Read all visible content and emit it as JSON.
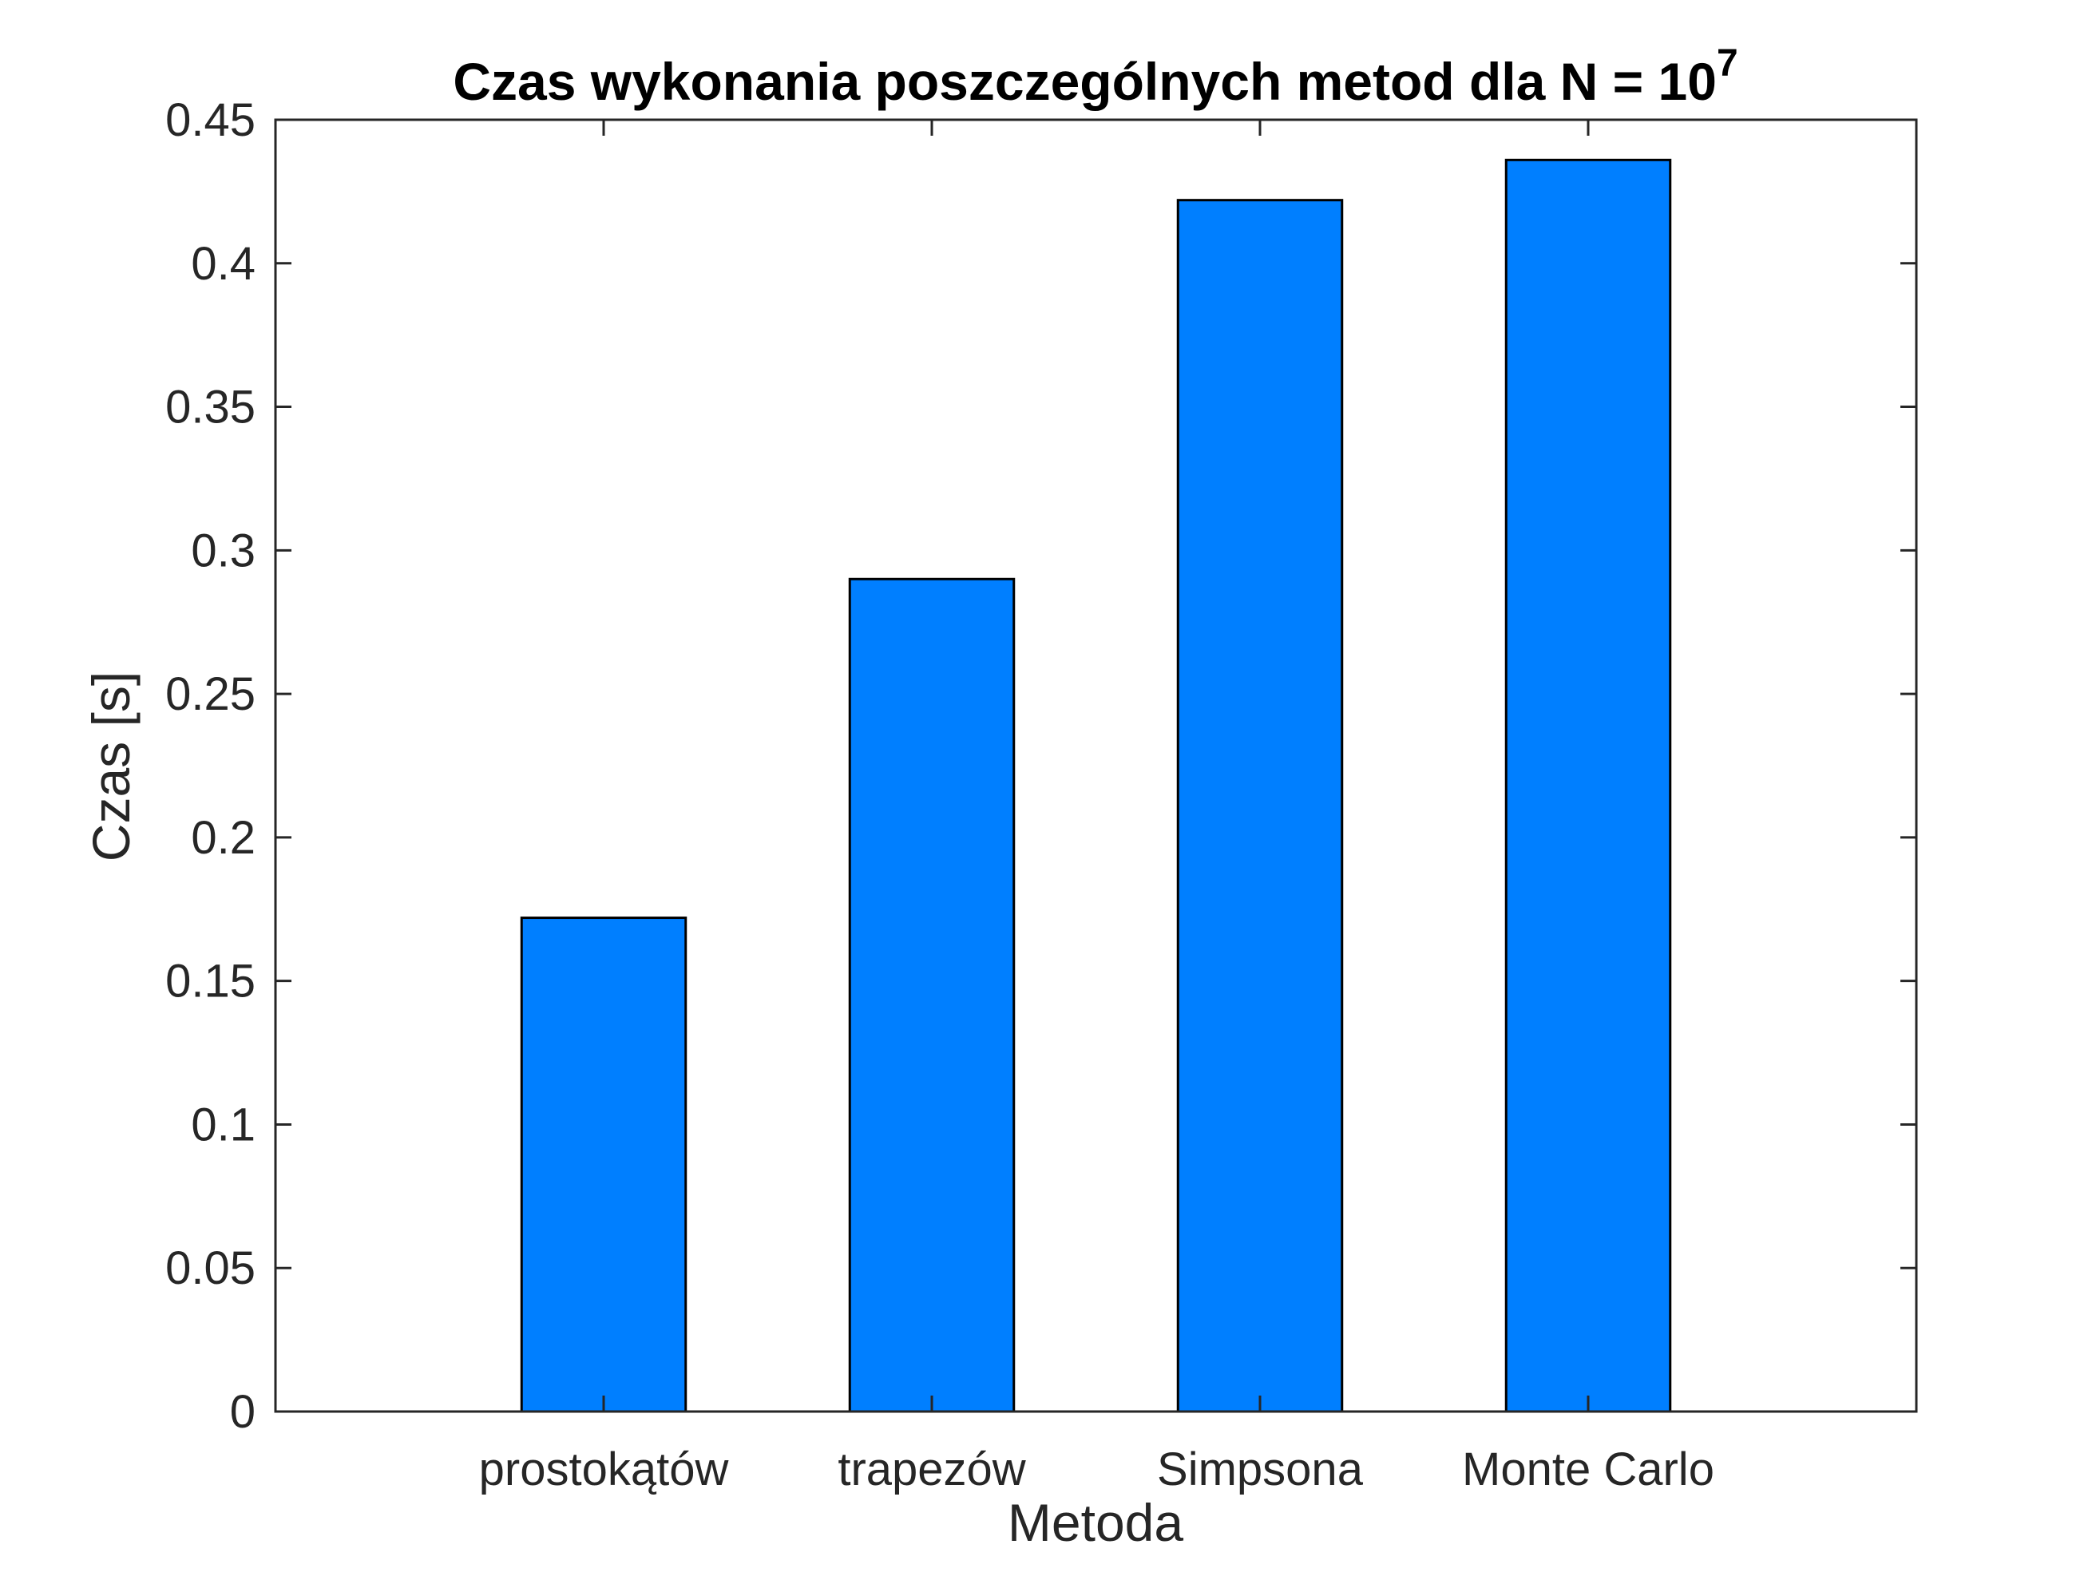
{
  "chart_data": {
    "type": "bar",
    "title": "Czas wykonania poszczególnych metod dla N = 10",
    "title_superscript": "7",
    "xlabel": "Metoda",
    "ylabel": "Czas [s]",
    "categories": [
      "prostokątów",
      "trapezów",
      "Simpsona",
      "Monte Carlo"
    ],
    "x_positions": [
      1,
      2,
      3,
      4
    ],
    "xlim": [
      0,
      5
    ],
    "values": [
      0.172,
      0.29,
      0.422,
      0.436
    ],
    "ylim": [
      0,
      0.45
    ],
    "yticks": [
      0,
      0.05,
      0.1,
      0.15,
      0.2,
      0.25,
      0.3,
      0.35,
      0.4,
      0.45
    ],
    "ytick_labels": [
      "0",
      "0.05",
      "0.1",
      "0.15",
      "0.2",
      "0.25",
      "0.3",
      "0.35",
      "0.4",
      "0.45"
    ],
    "bar_width": 0.5,
    "bar_color": "#007FFF",
    "bar_edge_color": "#000000",
    "axis_color": "#262626",
    "grid": false,
    "legend": false
  }
}
